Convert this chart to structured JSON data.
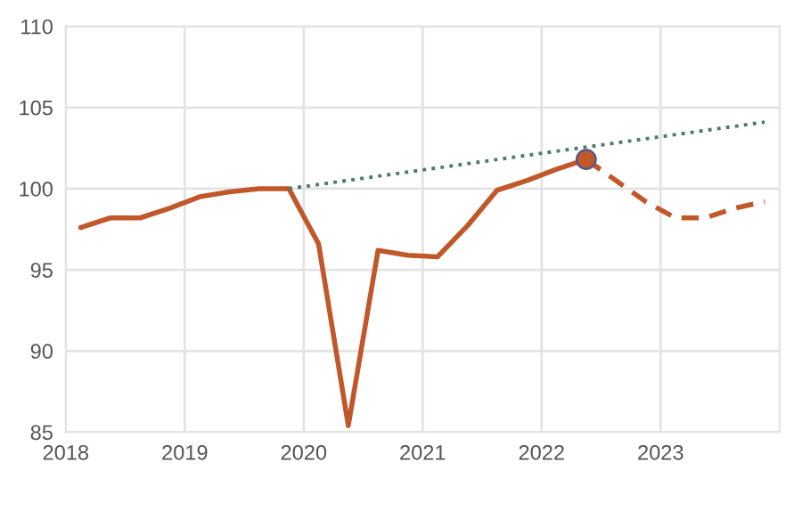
{
  "chart_data": {
    "type": "line",
    "xlim": [
      2018,
      2024
    ],
    "xticks": [
      2018,
      2019,
      2020,
      2021,
      2022,
      2023
    ],
    "ylim": [
      85,
      110
    ],
    "yticks": [
      85,
      90,
      95,
      100,
      105,
      110
    ],
    "grid": true,
    "series": [
      {
        "color": "#c0582a",
        "line_style": "solid",
        "x": [
          2018.125,
          2018.375,
          2018.625,
          2018.875,
          2019.125,
          2019.375,
          2019.625,
          2019.875,
          2020.125,
          2020.375,
          2020.625,
          2020.875,
          2021.125,
          2021.375,
          2021.625,
          2021.875,
          2022.125,
          2022.375
        ],
        "values": [
          97.6,
          98.2,
          98.2,
          98.8,
          99.5,
          99.8,
          100.0,
          100.0,
          96.6,
          85.4,
          96.2,
          95.9,
          95.8,
          97.7,
          99.9,
          100.5,
          101.2,
          101.8
        ]
      },
      {
        "color": "#c0582a",
        "line_style": "dashed",
        "x": [
          2022.375,
          2022.625,
          2022.875,
          2023.125,
          2023.375,
          2023.625,
          2023.875
        ],
        "values": [
          101.8,
          100.5,
          99.2,
          98.2,
          98.2,
          98.8,
          99.2
        ]
      },
      {
        "color": "#4f7a6a",
        "line_style": "dotted",
        "x": [
          2019.875,
          2023.875
        ],
        "values": [
          100.0,
          104.1
        ]
      },
      {
        "type": "scatter",
        "color": "#c0582a",
        "marker": "circle",
        "x": [
          2022.375
        ],
        "values": [
          101.8
        ]
      }
    ]
  }
}
